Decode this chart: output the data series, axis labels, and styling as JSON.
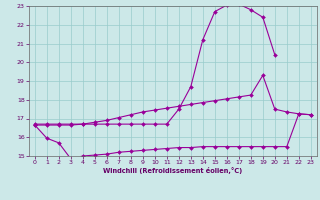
{
  "xlabel": "Windchill (Refroidissement éolien,°C)",
  "bg_color": "#cce8e8",
  "line_color": "#990099",
  "grid_color": "#99cccc",
  "xlim": [
    -0.5,
    23.5
  ],
  "ylim": [
    15,
    23
  ],
  "xticks": [
    0,
    1,
    2,
    3,
    4,
    5,
    6,
    7,
    8,
    9,
    10,
    11,
    12,
    13,
    14,
    15,
    16,
    17,
    18,
    19,
    20,
    21,
    22,
    23
  ],
  "yticks": [
    15,
    16,
    17,
    18,
    19,
    20,
    21,
    22,
    23
  ],
  "top_x": [
    0,
    1,
    2,
    3,
    4,
    5,
    6,
    7,
    8,
    9,
    10,
    11,
    12,
    13,
    14,
    15,
    16,
    17,
    18,
    19,
    20
  ],
  "top_y": [
    16.7,
    16.7,
    16.7,
    16.7,
    16.7,
    16.7,
    16.7,
    16.7,
    16.7,
    16.7,
    16.7,
    16.7,
    17.5,
    18.7,
    21.2,
    22.7,
    23.05,
    23.1,
    22.8,
    22.4,
    20.4
  ],
  "mid_x": [
    0,
    1,
    2,
    3,
    4,
    5,
    6,
    7,
    8,
    9,
    10,
    11,
    12,
    13,
    14,
    15,
    16,
    17,
    18,
    19,
    20,
    21,
    22,
    23
  ],
  "mid_y": [
    16.65,
    16.65,
    16.65,
    16.65,
    16.7,
    16.8,
    16.9,
    17.05,
    17.2,
    17.35,
    17.45,
    17.55,
    17.65,
    17.75,
    17.85,
    17.95,
    18.05,
    18.15,
    18.25,
    19.3,
    17.5,
    17.35,
    17.25,
    17.2
  ],
  "bot_x": [
    0,
    1,
    2,
    3,
    4,
    5,
    6,
    7,
    8,
    9,
    10,
    11,
    12,
    13,
    14,
    15,
    16,
    17,
    18,
    19,
    20,
    21,
    22,
    23
  ],
  "bot_y": [
    16.65,
    15.95,
    15.7,
    14.85,
    15.0,
    15.05,
    15.1,
    15.2,
    15.25,
    15.3,
    15.35,
    15.4,
    15.45,
    15.45,
    15.5,
    15.5,
    15.5,
    15.5,
    15.5,
    15.5,
    15.5,
    15.5,
    17.25,
    17.2
  ]
}
